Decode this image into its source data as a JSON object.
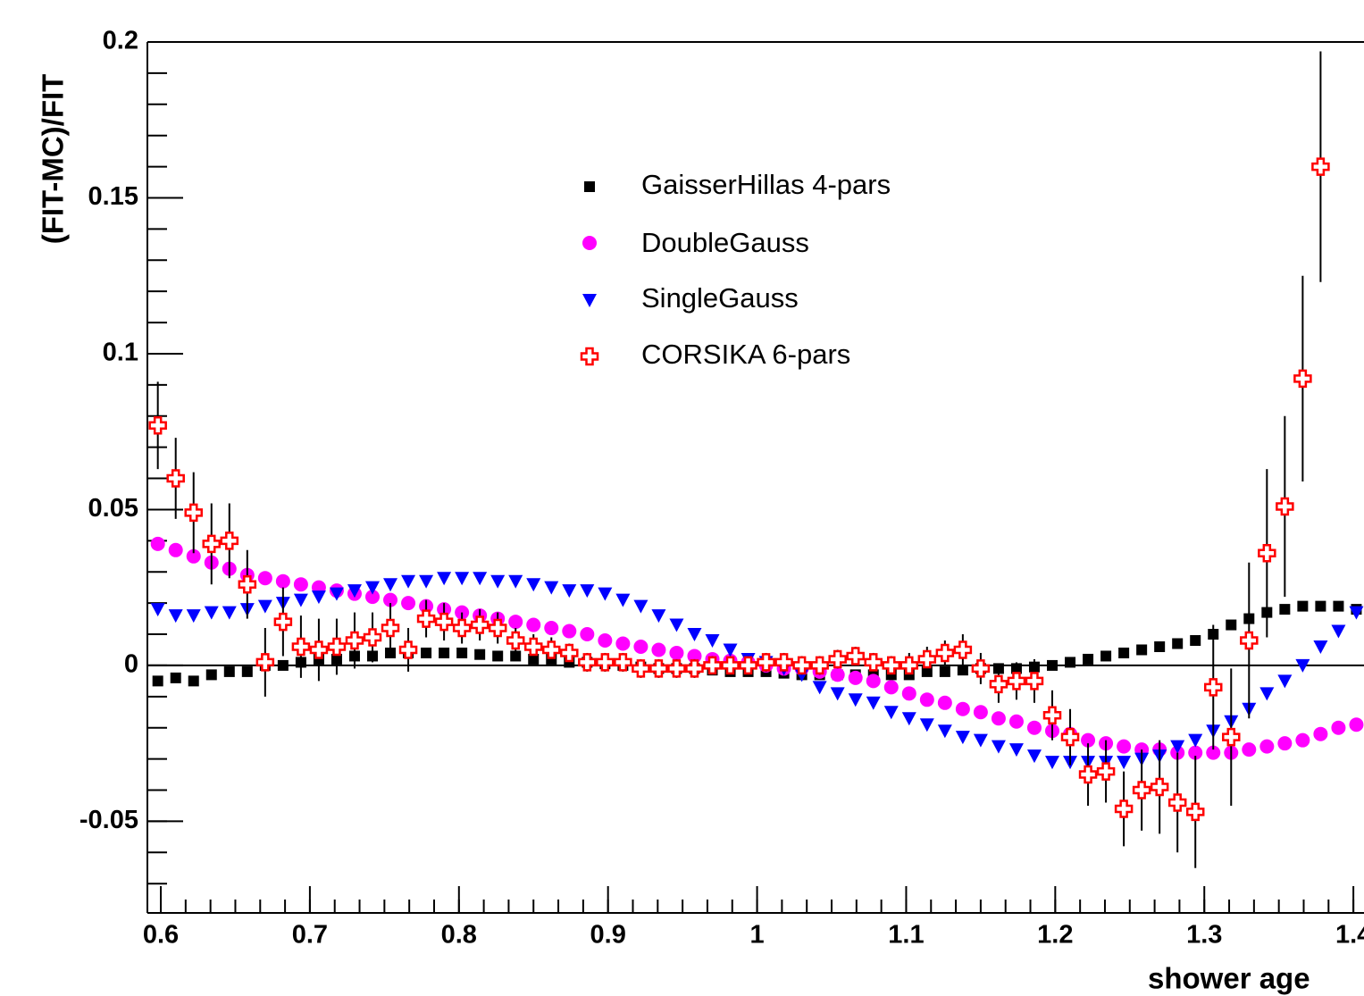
{
  "chart_data": {
    "type": "scatter",
    "xlabel": "shower age",
    "ylabel": "(FIT-MC)/FIT",
    "xlim": [
      0.591,
      1.5
    ],
    "ylim": [
      -0.0794,
      0.2
    ],
    "xticks": [
      0.6,
      0.7,
      0.8,
      0.9,
      1,
      1.1,
      1.2,
      1.3,
      1.4
    ],
    "yticks": [
      -0.05,
      0,
      0.05,
      0.1,
      0.15,
      0.2
    ],
    "x": [
      0.598,
      0.61,
      0.622,
      0.634,
      0.646,
      0.658,
      0.67,
      0.682,
      0.694,
      0.706,
      0.718,
      0.73,
      0.742,
      0.754,
      0.766,
      0.778,
      0.79,
      0.802,
      0.814,
      0.826,
      0.838,
      0.85,
      0.862,
      0.874,
      0.886,
      0.898,
      0.91,
      0.922,
      0.934,
      0.946,
      0.958,
      0.97,
      0.982,
      0.994,
      1.006,
      1.018,
      1.03,
      1.042,
      1.054,
      1.066,
      1.078,
      1.09,
      1.102,
      1.114,
      1.126,
      1.138,
      1.15,
      1.162,
      1.174,
      1.186,
      1.198,
      1.21,
      1.222,
      1.234,
      1.246,
      1.258,
      1.27,
      1.282,
      1.294,
      1.306,
      1.318,
      1.33,
      1.342,
      1.354,
      1.366,
      1.378,
      1.39,
      1.402
    ],
    "series": [
      {
        "name": "GaisserHillas 4-pars",
        "color": "#000000",
        "marker": "square",
        "values": [
          -0.005,
          -0.004,
          -0.005,
          -0.003,
          -0.002,
          -0.002,
          0,
          0,
          0.001,
          0.002,
          0.002,
          0.003,
          0.003,
          0.004,
          0.004,
          0.004,
          0.004,
          0.004,
          0.0035,
          0.003,
          0.003,
          0.002,
          0.002,
          0.001,
          0.001,
          0.0005,
          0,
          -0.0005,
          -0.001,
          -0.001,
          -0.001,
          -0.0015,
          -0.002,
          -0.002,
          -0.002,
          -0.0025,
          -0.003,
          -0.003,
          -0.003,
          -0.003,
          -0.003,
          -0.003,
          -0.003,
          -0.002,
          -0.002,
          -0.0015,
          -0.001,
          -0.001,
          -0.001,
          -0.0005,
          0,
          0.001,
          0.002,
          0.003,
          0.004,
          0.005,
          0.006,
          0.007,
          0.008,
          0.01,
          0.013,
          0.015,
          0.017,
          0.018,
          0.019,
          0.019,
          0.019,
          0.018
        ]
      },
      {
        "name": "DoubleGauss",
        "color": "#ff00ff",
        "marker": "circle",
        "values": [
          0.039,
          0.037,
          0.035,
          0.033,
          0.031,
          0.029,
          0.028,
          0.027,
          0.026,
          0.025,
          0.024,
          0.023,
          0.022,
          0.021,
          0.02,
          0.019,
          0.018,
          0.017,
          0.016,
          0.015,
          0.014,
          0.013,
          0.012,
          0.011,
          0.01,
          0.008,
          0.007,
          0.006,
          0.005,
          0.004,
          0.003,
          0.002,
          0.0015,
          0.001,
          0,
          -0.001,
          -0.001,
          -0.002,
          -0.003,
          -0.004,
          -0.005,
          -0.007,
          -0.009,
          -0.011,
          -0.012,
          -0.014,
          -0.015,
          -0.017,
          -0.018,
          -0.02,
          -0.021,
          -0.022,
          -0.024,
          -0.025,
          -0.026,
          -0.027,
          -0.027,
          -0.028,
          -0.028,
          -0.028,
          -0.028,
          -0.027,
          -0.026,
          -0.025,
          -0.024,
          -0.022,
          -0.02,
          -0.019
        ]
      },
      {
        "name": "SingleGauss",
        "color": "#0000ff",
        "marker": "triangle-down",
        "values": [
          0.018,
          0.016,
          0.016,
          0.017,
          0.017,
          0.018,
          0.019,
          0.02,
          0.021,
          0.022,
          0.023,
          0.024,
          0.025,
          0.026,
          0.027,
          0.027,
          0.028,
          0.028,
          0.028,
          0.027,
          0.027,
          0.026,
          0.025,
          0.024,
          0.024,
          0.023,
          0.021,
          0.019,
          0.016,
          0.013,
          0.01,
          0.008,
          0.005,
          0.002,
          0.001,
          -0.001,
          -0.003,
          -0.007,
          -0.009,
          -0.011,
          -0.012,
          -0.015,
          -0.017,
          -0.019,
          -0.021,
          -0.023,
          -0.024,
          -0.026,
          -0.027,
          -0.029,
          -0.031,
          -0.031,
          -0.031,
          -0.031,
          -0.031,
          -0.03,
          -0.029,
          -0.026,
          -0.024,
          -0.021,
          -0.018,
          -0.014,
          -0.009,
          -0.005,
          0,
          0.006,
          0.011,
          0.017
        ]
      },
      {
        "name": "CORSIKA 6-pars",
        "color": "#ff0000",
        "marker": "open-cross",
        "values": [
          0.077,
          0.06,
          0.049,
          0.039,
          0.04,
          0.026,
          0.001,
          0.014,
          0.006,
          0.005,
          0.006,
          0.008,
          0.009,
          0.012,
          0.005,
          0.015,
          0.014,
          0.012,
          0.013,
          0.012,
          0.008,
          0.006,
          0.005,
          0.004,
          0.001,
          0.001,
          0.001,
          -0.001,
          -0.001,
          -0.001,
          -0.001,
          0,
          0,
          0,
          0.001,
          0.001,
          0,
          0,
          0.002,
          0.003,
          0.001,
          0,
          0,
          0.002,
          0.004,
          0.005,
          -0.001,
          -0.006,
          -0.005,
          -0.005,
          -0.016,
          -0.023,
          -0.035,
          -0.034,
          -0.046,
          -0.04,
          -0.039,
          -0.044,
          -0.047,
          -0.007,
          -0.023,
          0.008,
          0.036,
          0.051,
          0.092,
          0.16,
          null,
          null
        ],
        "errors": [
          0.014,
          0.013,
          0.013,
          0.013,
          0.012,
          0.011,
          0.011,
          0.011,
          0.01,
          0.01,
          0.009,
          0.009,
          0.008,
          0.008,
          0.007,
          0.006,
          0.006,
          0.005,
          0.005,
          0.005,
          0.004,
          0.004,
          0.004,
          0.003,
          0.003,
          0.003,
          0.003,
          0.003,
          0.003,
          0.003,
          0.003,
          0.003,
          0.003,
          0.003,
          0.003,
          0.003,
          0.003,
          0.003,
          0.003,
          0.003,
          0.003,
          0.003,
          0.004,
          0.004,
          0.004,
          0.005,
          0.005,
          0.006,
          0.006,
          0.007,
          0.008,
          0.009,
          0.01,
          0.01,
          0.012,
          0.013,
          0.015,
          0.016,
          0.018,
          0.02,
          0.022,
          0.025,
          0.027,
          0.029,
          0.033,
          0.037,
          null,
          null
        ]
      }
    ]
  }
}
